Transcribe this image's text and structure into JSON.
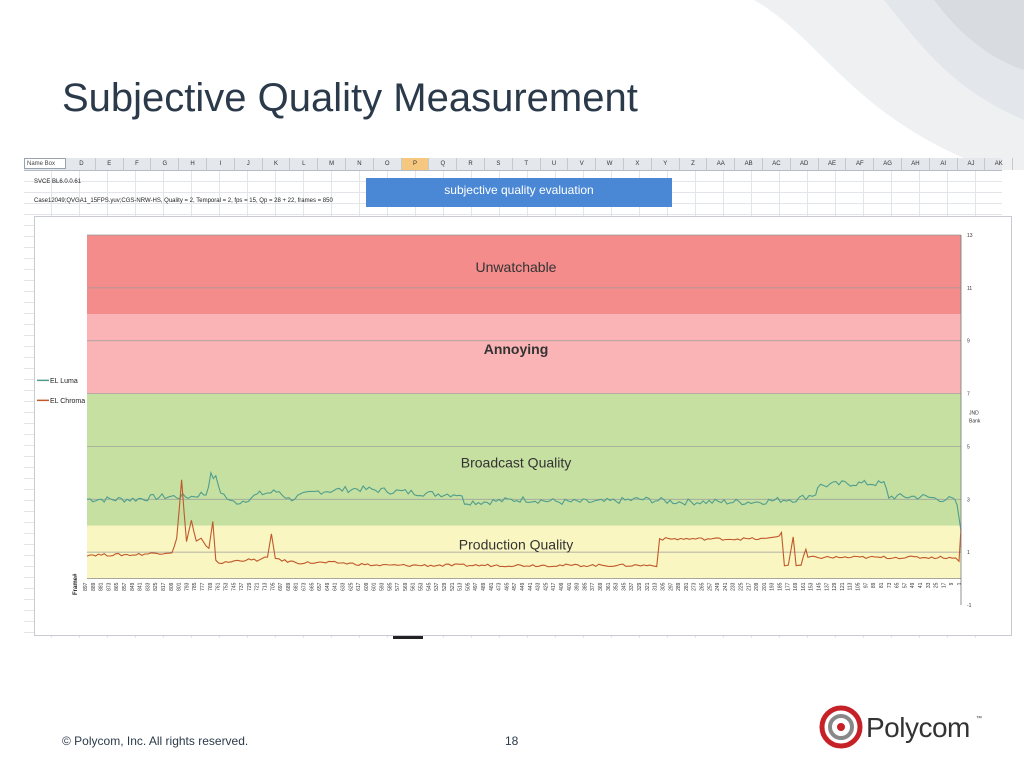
{
  "slide": {
    "title": "Subjective Quality Measurement",
    "footer_copyright": "© Polycom, Inc. All rights reserved.",
    "page_number": "18",
    "logo_text": "Polycom",
    "logo_trademark": "™"
  },
  "spreadsheet": {
    "name_box": "Name Box",
    "columns": [
      "D",
      "E",
      "F",
      "G",
      "H",
      "I",
      "J",
      "K",
      "L",
      "M",
      "N",
      "O",
      "P",
      "Q",
      "R",
      "S",
      "T",
      "U",
      "V",
      "W",
      "X",
      "Y",
      "Z",
      "AA",
      "AB",
      "AC",
      "AD",
      "AE",
      "AF",
      "AG",
      "AH",
      "AI",
      "AJ",
      "AK"
    ],
    "selected_column": "P",
    "cell_line1": "SVCE BL6.0.0.61",
    "cell_line2": "Case12049;QVGA1_15FPS.yuv;CGS-NRW-HS, Quality = 2, Temporal = 2, fps = 15, Qp = 28 + 22, frames = 850",
    "header_box": "subjective quality evaluation"
  },
  "chart_data": {
    "type": "line",
    "title": "",
    "xlabel": "Frame#",
    "ylabel": "",
    "y2label": "JND Bank",
    "ylim": [
      -1,
      13
    ],
    "yticks": [
      -1,
      1,
      3,
      5,
      7,
      9,
      11,
      13
    ],
    "x_reversed": true,
    "xlim": [
      1,
      897
    ],
    "xticks": [
      897,
      889,
      881,
      873,
      865,
      857,
      849,
      841,
      833,
      825,
      817,
      809,
      801,
      793,
      785,
      777,
      769,
      761,
      753,
      745,
      737,
      729,
      721,
      713,
      705,
      697,
      689,
      681,
      673,
      665,
      657,
      649,
      641,
      633,
      625,
      617,
      609,
      601,
      593,
      585,
      577,
      569,
      561,
      553,
      545,
      537,
      529,
      521,
      513,
      505,
      497,
      489,
      481,
      473,
      465,
      457,
      449,
      441,
      433,
      425,
      417,
      409,
      401,
      393,
      385,
      377,
      369,
      361,
      353,
      345,
      337,
      329,
      321,
      313,
      305,
      297,
      289,
      281,
      273,
      265,
      257,
      249,
      241,
      233,
      225,
      217,
      209,
      201,
      193,
      185,
      177,
      169,
      161,
      153,
      145,
      137,
      129,
      121,
      113,
      105,
      97,
      89,
      81,
      73,
      65,
      57,
      49,
      41,
      33,
      25,
      17,
      9,
      1
    ],
    "bands": [
      {
        "label": "Unwatchable",
        "from": 10,
        "to": 13,
        "color": "#f48c8c"
      },
      {
        "label": "Annoying",
        "from": 7,
        "to": 10,
        "color": "#fab4b6"
      },
      {
        "label": "Broadcast Quality",
        "from": 2,
        "to": 7,
        "color": "#c6e0a2"
      },
      {
        "label": "Production Quality",
        "from": 0,
        "to": 2,
        "color": "#faf6c2"
      }
    ],
    "series": [
      {
        "name": "EL Luma",
        "color": "#4f9e8c",
        "x": [
          897,
          850,
          820,
          790,
          780,
          775,
          770,
          765,
          760,
          750,
          740,
          720,
          700,
          690,
          660,
          620,
          580,
          540,
          515,
          510,
          490,
          450,
          410,
          370,
          330,
          290,
          250,
          210,
          180,
          170,
          160,
          150,
          148,
          120,
          100,
          80,
          75,
          40,
          20,
          10,
          5,
          1
        ],
        "values": [
          3.0,
          3.0,
          3.1,
          3.1,
          3.2,
          3.2,
          3.9,
          3.8,
          3.3,
          2.9,
          2.9,
          3.2,
          3.3,
          3.0,
          3.3,
          3.4,
          3.3,
          3.2,
          3.2,
          2.9,
          2.9,
          3.0,
          2.9,
          2.9,
          3.0,
          2.9,
          2.9,
          2.9,
          3.0,
          3.0,
          3.1,
          3.2,
          3.5,
          3.6,
          3.6,
          3.6,
          3.1,
          3.1,
          3.0,
          3.0,
          2.8,
          1.8
        ]
      },
      {
        "name": "EL Chroma",
        "color": "#c0582a",
        "x": [
          897,
          850,
          810,
          805,
          800,
          795,
          790,
          785,
          780,
          775,
          772,
          768,
          765,
          762,
          755,
          740,
          720,
          712,
          708,
          704,
          700,
          680,
          640,
          600,
          560,
          520,
          480,
          440,
          400,
          360,
          320,
          313,
          310,
          270,
          230,
          200,
          190,
          185,
          182,
          178,
          173,
          170,
          165,
          160,
          158,
          150,
          120,
          80,
          40,
          10,
          3,
          1
        ],
        "values": [
          0.9,
          0.9,
          1.0,
          1.5,
          3.7,
          1.4,
          2.2,
          1.4,
          1.5,
          1.2,
          1.1,
          2.2,
          0.7,
          0.6,
          0.6,
          0.7,
          0.7,
          0.8,
          1.7,
          0.8,
          0.7,
          0.6,
          0.6,
          0.5,
          0.5,
          0.5,
          0.5,
          0.5,
          0.5,
          0.5,
          0.5,
          0.5,
          1.5,
          1.5,
          1.5,
          1.5,
          1.6,
          1.7,
          0.5,
          0.5,
          1.6,
          0.5,
          0.5,
          1.1,
          0.8,
          0.8,
          0.8,
          0.8,
          0.8,
          0.8,
          0.7,
          1.9
        ]
      }
    ],
    "legend": "left"
  }
}
